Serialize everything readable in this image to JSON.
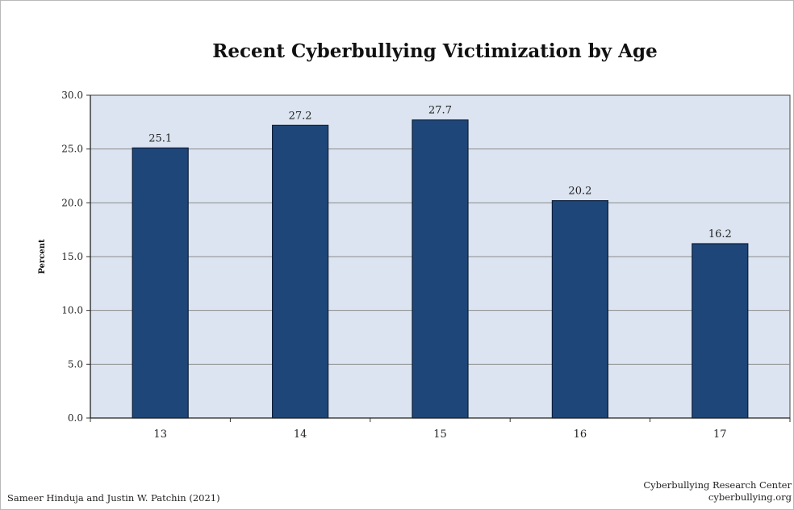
{
  "footer": {
    "authors": "Sameer Hinduja and Justin W. Patchin (2021)",
    "org": "Cyberbullying Research Center",
    "site": "cyberbullying.org"
  },
  "chart_data": {
    "type": "bar",
    "title": "Recent Cyberbullying Victimization by Age",
    "xlabel": "",
    "ylabel": "Percent",
    "categories": [
      "13",
      "14",
      "15",
      "16",
      "17"
    ],
    "values": [
      25.1,
      27.2,
      27.7,
      20.2,
      16.2
    ],
    "value_labels": [
      "25.1",
      "27.2",
      "27.7",
      "20.2",
      "16.2"
    ],
    "ylim": [
      0,
      30
    ],
    "yticks": [
      "0.0",
      "5.0",
      "10.0",
      "15.0",
      "20.0",
      "25.0",
      "30.0"
    ],
    "grid": true,
    "legend": "none",
    "colors": {
      "bar": "#1f4678",
      "bar_edge": "#0d1f3a",
      "plot_bg": "#dbe4f0",
      "grid": "#8c8c8c"
    }
  }
}
